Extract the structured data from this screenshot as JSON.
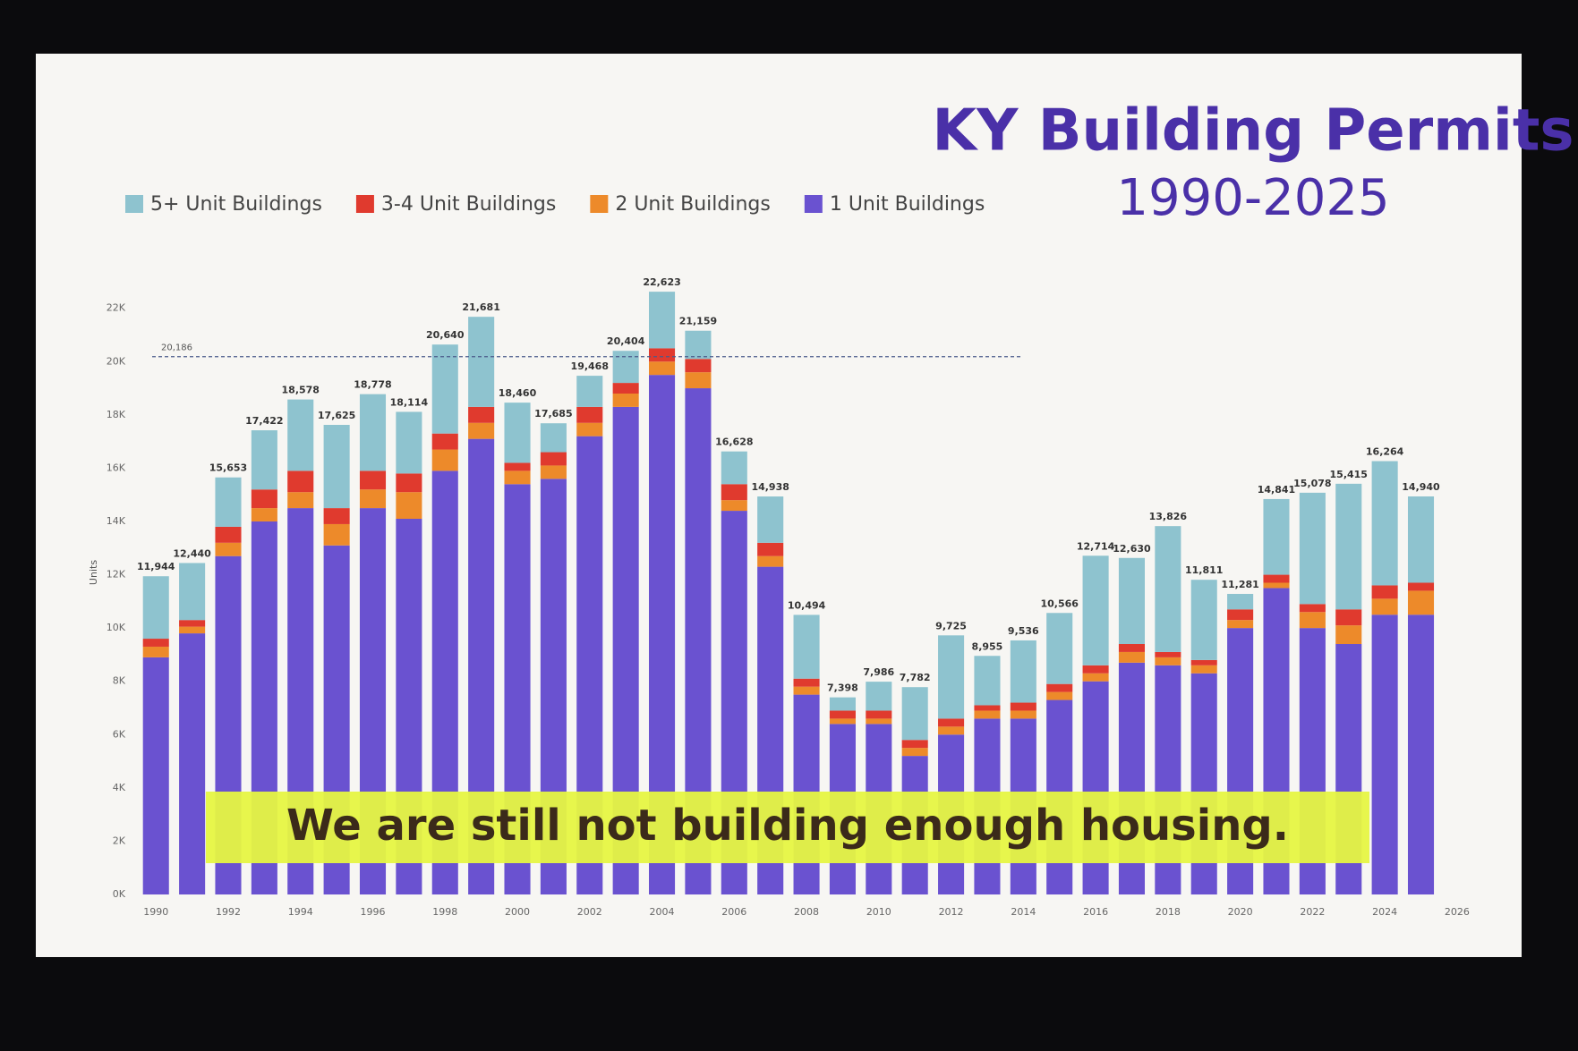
{
  "chart_data": {
    "type": "stacked_bar",
    "title": "KY Building Permits",
    "subtitle": "1990-2025",
    "y_label": "Units",
    "annotation": "We are still not building enough housing.",
    "x": [
      1990,
      1991,
      1992,
      1993,
      1994,
      1995,
      1996,
      1997,
      1998,
      1999,
      2000,
      2001,
      2002,
      2003,
      2004,
      2005,
      2006,
      2007,
      2008,
      2009,
      2010,
      2011,
      2012,
      2013,
      2014,
      2015,
      2016,
      2017,
      2018,
      2019,
      2020,
      2021,
      2022,
      2023,
      2024,
      2025
    ],
    "xlim": [
      1989.4,
      2026.3
    ],
    "xticks": [
      1990,
      1992,
      1994,
      1996,
      1998,
      2000,
      2002,
      2004,
      2006,
      2008,
      2010,
      2012,
      2014,
      2016,
      2018,
      2020,
      2022,
      2024,
      2026
    ],
    "ylim": [
      0,
      23500
    ],
    "yticks": [
      {
        "value": 0,
        "label": "0K"
      },
      {
        "value": 2000,
        "label": "2K"
      },
      {
        "value": 4000,
        "label": "4K"
      },
      {
        "value": 6000,
        "label": "6K"
      },
      {
        "value": 8000,
        "label": "8K"
      },
      {
        "value": 10000,
        "label": "10K"
      },
      {
        "value": 12000,
        "label": "12K"
      },
      {
        "value": 14000,
        "label": "14K"
      },
      {
        "value": 16000,
        "label": "16K"
      },
      {
        "value": 18000,
        "label": "18K"
      },
      {
        "value": 20000,
        "label": "20K"
      },
      {
        "value": 22000,
        "label": "22K"
      }
    ],
    "reference_line": {
      "value": 20186,
      "label": "20,186"
    },
    "series": [
      {
        "name": "1 Unit Buildings",
        "color": "#6a52d0",
        "values": [
          8900,
          9800,
          12700,
          14000,
          14500,
          13100,
          14500,
          14100,
          15900,
          17100,
          15400,
          15600,
          17200,
          18300,
          19500,
          19000,
          14400,
          12300,
          7500,
          6400,
          6400,
          5200,
          6000,
          6600,
          6600,
          7300,
          8000,
          8700,
          8600,
          8300,
          10000,
          11500,
          10000,
          9400,
          10500,
          10500
        ]
      },
      {
        "name": "2 Unit Buildings",
        "color": "#ed8a2a",
        "values": [
          400,
          250,
          500,
          500,
          600,
          800,
          700,
          1000,
          800,
          600,
          500,
          500,
          500,
          500,
          500,
          600,
          400,
          400,
          300,
          200,
          200,
          300,
          300,
          300,
          300,
          300,
          300,
          400,
          300,
          300,
          300,
          200,
          600,
          700,
          600,
          900
        ]
      },
      {
        "name": "3-4 Unit Buildings",
        "color": "#e03a2e",
        "values": [
          300,
          250,
          600,
          700,
          800,
          600,
          700,
          700,
          600,
          600,
          300,
          500,
          600,
          400,
          500,
          500,
          600,
          500,
          300,
          300,
          300,
          300,
          300,
          200,
          300,
          300,
          300,
          300,
          200,
          200,
          400,
          300,
          300,
          600,
          500,
          300
        ]
      },
      {
        "name": "5+ Unit Buildings",
        "color": "#8ec3cf",
        "values": [
          2344,
          2140,
          1853,
          2222,
          2678,
          3125,
          2878,
          2314,
          3340,
          3381,
          2260,
          1085,
          1168,
          1204,
          2123,
          1059,
          1228,
          1738,
          2394,
          498,
          1086,
          1982,
          3125,
          1855,
          2336,
          2666,
          4114,
          3230,
          4726,
          3011,
          581,
          2841,
          4178,
          4715,
          4664,
          3240
        ]
      }
    ],
    "totals": [
      11944,
      12440,
      15653,
      17422,
      18578,
      17625,
      18778,
      18114,
      20640,
      21681,
      18460,
      17685,
      19468,
      20404,
      22623,
      21159,
      16628,
      14938,
      10494,
      7398,
      7986,
      7782,
      9725,
      8955,
      9536,
      10566,
      12714,
      12630,
      13826,
      11811,
      11281,
      14841,
      15078,
      15415,
      16264,
      14940
    ],
    "total_labels": [
      "11,944",
      "12,440",
      "15,653",
      "17,422",
      "18,578",
      "17,625",
      "18,778",
      "18,114",
      "20,640",
      "21,681",
      "18,460",
      "17,685",
      "19,468",
      "20,404",
      "22,623",
      "21,159",
      "16,628",
      "14,938",
      "10,494",
      "7,398",
      "7,986",
      "7,782",
      "9,725",
      "8,955",
      "9,536",
      "10,566",
      "12,714",
      "12,630",
      "13,826",
      "11,811",
      "11,281",
      "14,841",
      "15,078",
      "15,415",
      "16,264",
      "14,940"
    ]
  }
}
